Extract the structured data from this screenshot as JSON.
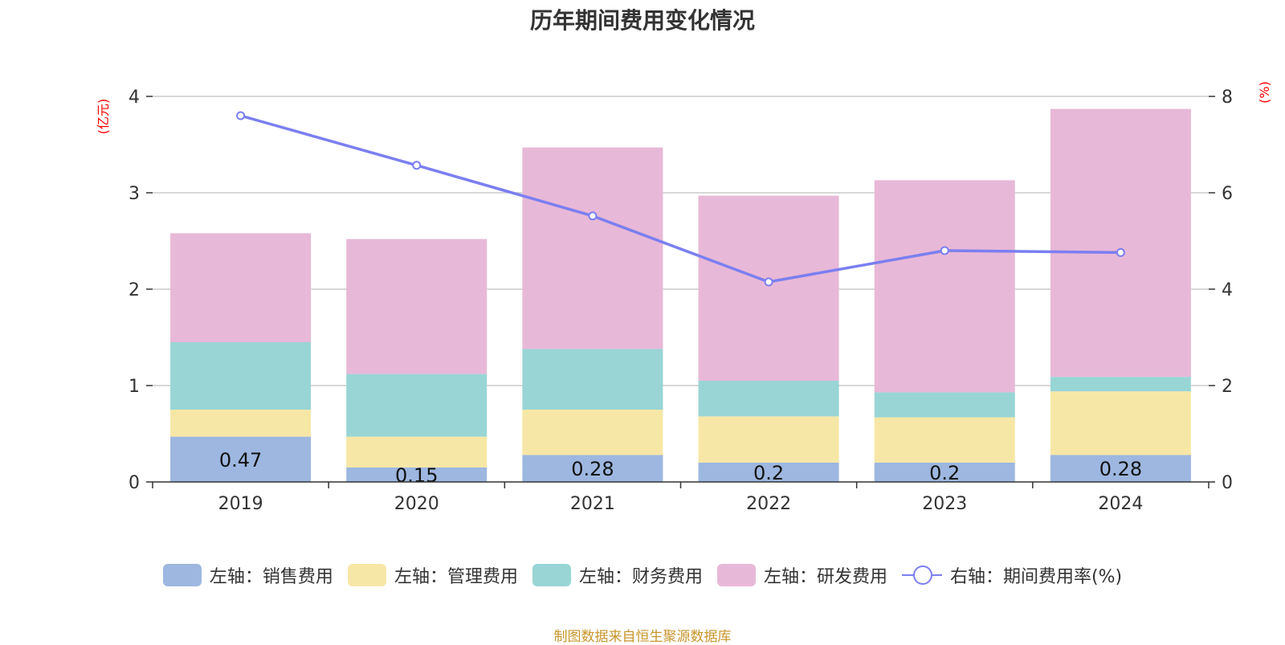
{
  "chart_data": {
    "type": "bar",
    "title": "历年期间费用变化情况",
    "categories": [
      "2019",
      "2020",
      "2021",
      "2022",
      "2023",
      "2024"
    ],
    "y_left": {
      "label": "(亿元)",
      "ylim": [
        0,
        4
      ],
      "ticks": [
        0,
        1,
        2,
        3,
        4
      ]
    },
    "y_right": {
      "label": "(%)",
      "ylim": [
        0,
        8
      ],
      "ticks": [
        0,
        2,
        4,
        6,
        8
      ]
    },
    "stacked": true,
    "series": [
      {
        "name": "左轴：销售费用",
        "type": "bar",
        "axis": "left",
        "color": "#9db7e0",
        "values": [
          0.47,
          0.15,
          0.28,
          0.2,
          0.2,
          0.28
        ],
        "labels": [
          "0.47",
          "0.15",
          "0.28",
          "0.2",
          "0.2",
          "0.28"
        ]
      },
      {
        "name": "左轴：管理费用",
        "type": "bar",
        "axis": "left",
        "color": "#f7e7a6",
        "values": [
          0.28,
          0.32,
          0.47,
          0.48,
          0.47,
          0.66
        ]
      },
      {
        "name": "左轴：财务费用",
        "type": "bar",
        "axis": "left",
        "color": "#99d5d5",
        "values": [
          0.7,
          0.65,
          0.63,
          0.37,
          0.26,
          0.15
        ]
      },
      {
        "name": "左轴：研发费用",
        "type": "bar",
        "axis": "left",
        "color": "#e8b8d8",
        "values": [
          1.13,
          1.4,
          2.09,
          1.92,
          2.2,
          2.78
        ]
      },
      {
        "name": "右轴：期间费用率(%)",
        "type": "line",
        "axis": "right",
        "color": "#7b7ff0",
        "values": [
          7.6,
          6.57,
          5.52,
          4.15,
          4.8,
          4.76
        ]
      }
    ],
    "legend": "bottom",
    "grid": true
  },
  "source_note": "制图数据来自恒生聚源数据库"
}
